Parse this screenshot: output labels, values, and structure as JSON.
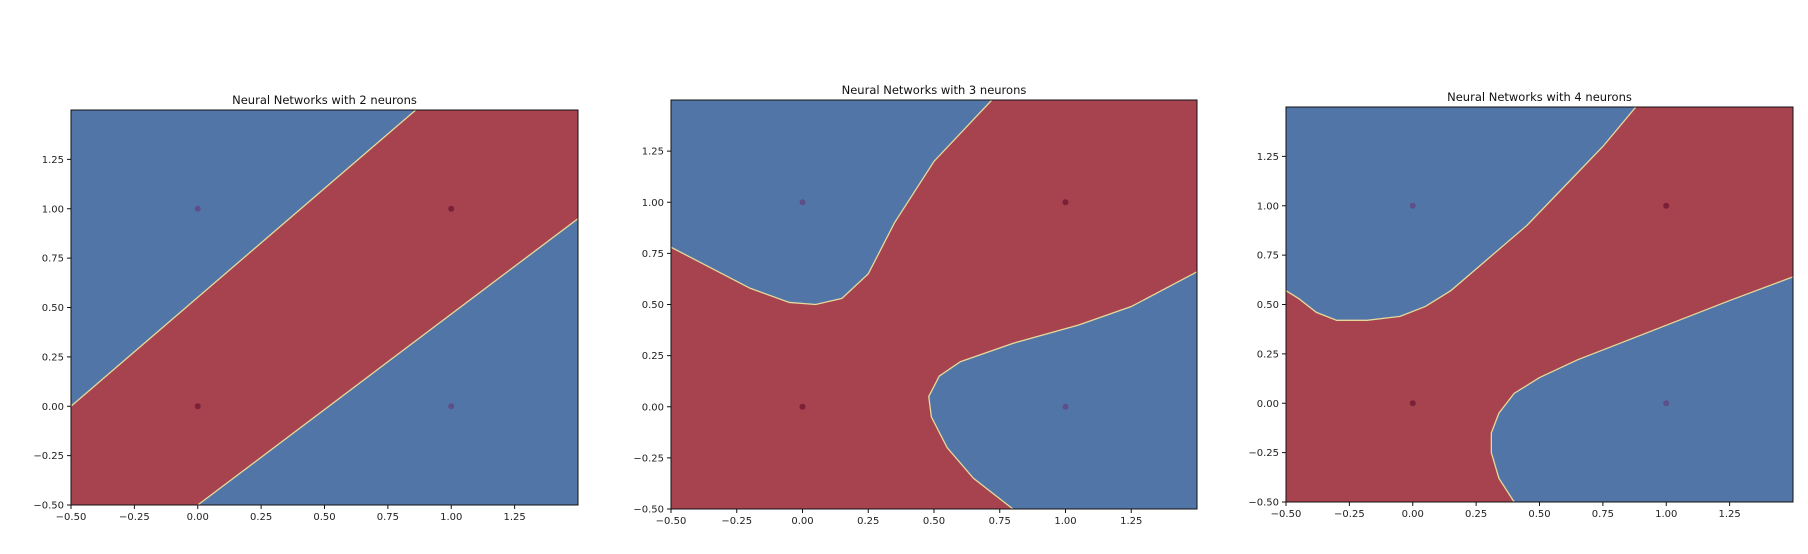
{
  "chart_data": [
    {
      "type": "heatmap",
      "title": "Neural Networks with 2 neurons",
      "xlabel": "",
      "ylabel": "",
      "xlim": [
        -0.5,
        1.5
      ],
      "ylim": [
        -0.5,
        1.5
      ],
      "xticks": [
        "−0.50",
        "−0.25",
        "0.00",
        "0.25",
        "0.50",
        "0.75",
        "1.00",
        "1.25"
      ],
      "yticks": [
        "−0.50",
        "−0.25",
        "0.00",
        "0.25",
        "0.50",
        "0.75",
        "1.00",
        "1.25"
      ],
      "grid": false,
      "colors": {
        "class_0": "#5275a8",
        "class_1": "#a7424f",
        "boundary": "#e4d99a"
      },
      "points": [
        {
          "x": 0,
          "y": 0,
          "class": 1
        },
        {
          "x": 0,
          "y": 1,
          "class": 0
        },
        {
          "x": 1,
          "y": 0,
          "class": 0
        },
        {
          "x": 1,
          "y": 1,
          "class": 1
        }
      ],
      "decision_boundaries": [
        [
          [
            -0.5,
            0.0
          ],
          [
            0.86,
            1.5
          ]
        ],
        [
          [
            0.0,
            -0.5
          ],
          [
            1.5,
            0.95
          ]
        ]
      ]
    },
    {
      "type": "heatmap",
      "title": "Neural Networks with 3 neurons",
      "xlabel": "",
      "ylabel": "",
      "xlim": [
        -0.5,
        1.5
      ],
      "ylim": [
        -0.5,
        1.5
      ],
      "xticks": [
        "−0.50",
        "−0.25",
        "0.00",
        "0.25",
        "0.50",
        "0.75",
        "1.00",
        "1.25"
      ],
      "yticks": [
        "−0.50",
        "−0.25",
        "0.00",
        "0.25",
        "0.50",
        "0.75",
        "1.00",
        "1.25"
      ],
      "grid": false,
      "colors": {
        "class_0": "#5275a8",
        "class_1": "#a7424f",
        "boundary": "#e4d99a"
      },
      "points": [
        {
          "x": 0,
          "y": 0,
          "class": 1
        },
        {
          "x": 0,
          "y": 1,
          "class": 0
        },
        {
          "x": 1,
          "y": 0,
          "class": 0
        },
        {
          "x": 1,
          "y": 1,
          "class": 1
        }
      ],
      "decision_boundaries": [
        [
          [
            -0.5,
            0.78
          ],
          [
            -0.35,
            0.68
          ],
          [
            -0.2,
            0.58
          ],
          [
            -0.05,
            0.51
          ],
          [
            0.05,
            0.5
          ],
          [
            0.15,
            0.53
          ],
          [
            0.25,
            0.65
          ],
          [
            0.35,
            0.9
          ],
          [
            0.5,
            1.2
          ],
          [
            0.72,
            1.5
          ]
        ],
        [
          [
            0.8,
            -0.5
          ],
          [
            0.65,
            -0.35
          ],
          [
            0.55,
            -0.2
          ],
          [
            0.49,
            -0.05
          ],
          [
            0.48,
            0.05
          ],
          [
            0.52,
            0.15
          ],
          [
            0.6,
            0.22
          ],
          [
            0.8,
            0.31
          ],
          [
            1.05,
            0.4
          ],
          [
            1.25,
            0.49
          ],
          [
            1.5,
            0.66
          ]
        ]
      ]
    },
    {
      "type": "heatmap",
      "title": "Neural Networks with 4 neurons",
      "xlabel": "",
      "ylabel": "",
      "xlim": [
        -0.5,
        1.5
      ],
      "ylim": [
        -0.5,
        1.5
      ],
      "xticks": [
        "−0.50",
        "−0.25",
        "0.00",
        "0.25",
        "0.50",
        "0.75",
        "1.00",
        "1.25"
      ],
      "yticks": [
        "−0.50",
        "−0.25",
        "0.00",
        "0.25",
        "0.50",
        "0.75",
        "1.00",
        "1.25"
      ],
      "grid": false,
      "colors": {
        "class_0": "#5275a8",
        "class_1": "#a7424f",
        "boundary": "#e4d99a"
      },
      "points": [
        {
          "x": 0,
          "y": 0,
          "class": 1
        },
        {
          "x": 0,
          "y": 1,
          "class": 0
        },
        {
          "x": 1,
          "y": 0,
          "class": 0
        },
        {
          "x": 1,
          "y": 1,
          "class": 1
        }
      ],
      "decision_boundaries": [
        [
          [
            -0.5,
            0.57
          ],
          [
            -0.45,
            0.53
          ],
          [
            -0.38,
            0.46
          ],
          [
            -0.3,
            0.42
          ],
          [
            -0.18,
            0.42
          ],
          [
            -0.05,
            0.44
          ],
          [
            0.05,
            0.49
          ],
          [
            0.15,
            0.57
          ],
          [
            0.25,
            0.68
          ],
          [
            0.45,
            0.9
          ],
          [
            0.6,
            1.1
          ],
          [
            0.75,
            1.3
          ],
          [
            0.88,
            1.5
          ]
        ],
        [
          [
            0.4,
            -0.5
          ],
          [
            0.34,
            -0.38
          ],
          [
            0.31,
            -0.25
          ],
          [
            0.31,
            -0.15
          ],
          [
            0.34,
            -0.05
          ],
          [
            0.4,
            0.05
          ],
          [
            0.5,
            0.13
          ],
          [
            0.65,
            0.22
          ],
          [
            0.85,
            0.32
          ],
          [
            1.05,
            0.42
          ],
          [
            1.25,
            0.52
          ],
          [
            1.5,
            0.64
          ]
        ]
      ]
    }
  ]
}
